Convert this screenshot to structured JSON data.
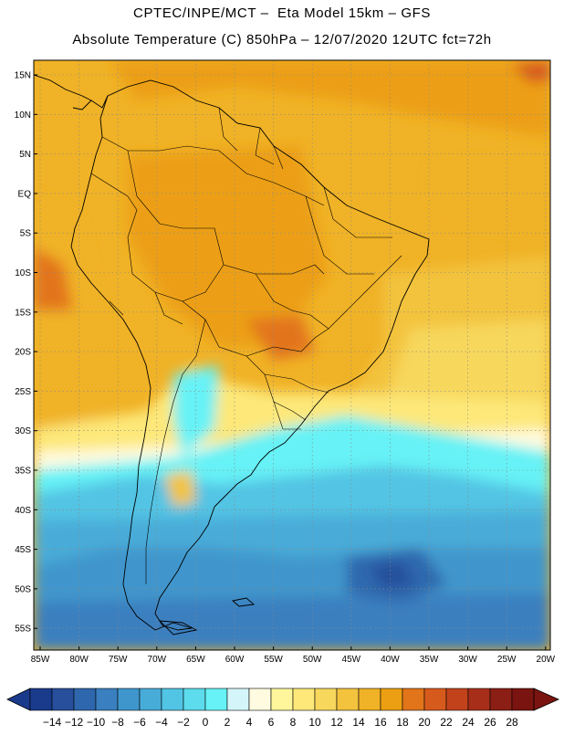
{
  "header": {
    "line1": "CPTEC/INPE/MCT –  Eta Model 15km – GFS",
    "line2": "Absolute Temperature (C) 850hPa – 12/07/2020 12UTC fct=72h"
  },
  "map": {
    "lat_labels": [
      "15N",
      "10N",
      "5N",
      "EQ",
      "5S",
      "10S",
      "15S",
      "20S",
      "25S",
      "30S",
      "35S",
      "40S",
      "45S",
      "50S",
      "55S"
    ],
    "lon_labels": [
      "85W",
      "80W",
      "75W",
      "70W",
      "65W",
      "60W",
      "55W",
      "50W",
      "45W",
      "40W",
      "35W",
      "30W",
      "25W",
      "20W"
    ],
    "grid": true,
    "grid_style": "dotted"
  },
  "colorbar": {
    "labels": [
      "-14",
      "-12",
      "-10",
      "-8",
      "-6",
      "-4",
      "-2",
      "0",
      "2",
      "4",
      "6",
      "8",
      "10",
      "12",
      "14",
      "16",
      "18",
      "20",
      "22",
      "24",
      "26",
      "28"
    ],
    "colors": [
      "#1a3a8c",
      "#274f9b",
      "#2e67ad",
      "#3a7fbf",
      "#3f96cc",
      "#48acd8",
      "#52c4e4",
      "#5cdcec",
      "#66f2f6",
      "#d4f6fb",
      "#fffbe0",
      "#fff59a",
      "#fde879",
      "#f7d75c",
      "#f3c33e",
      "#f0b226",
      "#ec9f12",
      "#e2741a",
      "#d75a1d",
      "#c2421c",
      "#a72f1a",
      "#8b1f16",
      "#7a1410"
    ]
  }
}
